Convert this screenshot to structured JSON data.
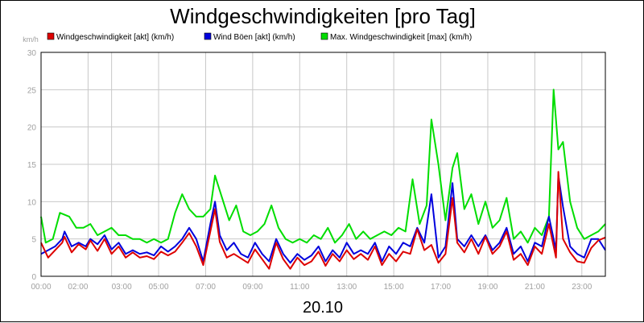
{
  "chart_data": {
    "type": "line",
    "title": "Windgeschwindigkeiten [pro Tag]",
    "date_label": "20.10",
    "ylabel": "km/h",
    "ylim": [
      0,
      30
    ],
    "yticks": [
      "0",
      "5",
      "10",
      "15",
      "20",
      "25",
      "30"
    ],
    "xlim": [
      0,
      24
    ],
    "xtick_hours": [
      0,
      2,
      3,
      5,
      7,
      9,
      11,
      13,
      15,
      17,
      19,
      21,
      23
    ],
    "xtick_labels": [
      "00:00",
      "02:00",
      "03:00",
      "05:00",
      "07:00",
      "09:00",
      "11:00",
      "13:00",
      "15:00",
      "17:00",
      "19:00",
      "21:00",
      "23:00"
    ],
    "grid": true,
    "legend_position": "top",
    "series": [
      {
        "name": "Windgeschwindigkeit [akt] (km/h)",
        "color": "#dd0000",
        "points": [
          [
            0,
            4.5
          ],
          [
            0.3,
            2.5
          ],
          [
            0.6,
            3.5
          ],
          [
            0.9,
            4.5
          ],
          [
            1.0,
            5.3
          ],
          [
            1.3,
            3.2
          ],
          [
            1.6,
            4.3
          ],
          [
            1.9,
            3.6
          ],
          [
            2.1,
            4.8
          ],
          [
            2.4,
            3.4
          ],
          [
            2.7,
            5.0
          ],
          [
            3.0,
            3.0
          ],
          [
            3.3,
            4.0
          ],
          [
            3.6,
            2.5
          ],
          [
            3.9,
            3.2
          ],
          [
            4.2,
            2.5
          ],
          [
            4.5,
            2.7
          ],
          [
            4.8,
            2.3
          ],
          [
            5.1,
            3.3
          ],
          [
            5.4,
            2.8
          ],
          [
            5.7,
            3.3
          ],
          [
            6.0,
            4.5
          ],
          [
            6.3,
            5.8
          ],
          [
            6.6,
            4.0
          ],
          [
            6.9,
            1.5
          ],
          [
            7.2,
            6.0
          ],
          [
            7.4,
            9.0
          ],
          [
            7.6,
            4.6
          ],
          [
            7.9,
            2.5
          ],
          [
            8.2,
            3.0
          ],
          [
            8.5,
            2.4
          ],
          [
            8.8,
            1.8
          ],
          [
            9.1,
            3.6
          ],
          [
            9.4,
            2.3
          ],
          [
            9.7,
            1.0
          ],
          [
            10.0,
            4.5
          ],
          [
            10.3,
            2.3
          ],
          [
            10.6,
            1.0
          ],
          [
            10.9,
            2.5
          ],
          [
            11.2,
            1.5
          ],
          [
            11.5,
            2.0
          ],
          [
            11.8,
            3.3
          ],
          [
            12.1,
            1.4
          ],
          [
            12.4,
            3.0
          ],
          [
            12.7,
            2.0
          ],
          [
            13.0,
            3.5
          ],
          [
            13.3,
            2.3
          ],
          [
            13.6,
            3.0
          ],
          [
            13.9,
            2.2
          ],
          [
            14.2,
            4.0
          ],
          [
            14.5,
            1.5
          ],
          [
            14.8,
            3.0
          ],
          [
            15.1,
            2.0
          ],
          [
            15.4,
            3.3
          ],
          [
            15.7,
            3.0
          ],
          [
            16.0,
            6.3
          ],
          [
            16.3,
            3.5
          ],
          [
            16.6,
            4.2
          ],
          [
            16.9,
            1.8
          ],
          [
            17.2,
            3.0
          ],
          [
            17.5,
            10.5
          ],
          [
            17.7,
            4.5
          ],
          [
            18.0,
            3.2
          ],
          [
            18.3,
            5.0
          ],
          [
            18.6,
            3.0
          ],
          [
            18.9,
            5.3
          ],
          [
            19.2,
            3.0
          ],
          [
            19.5,
            4.0
          ],
          [
            19.8,
            6.0
          ],
          [
            20.1,
            2.2
          ],
          [
            20.4,
            3.0
          ],
          [
            20.7,
            1.5
          ],
          [
            21.0,
            4.0
          ],
          [
            21.3,
            3.0
          ],
          [
            21.6,
            7.0
          ],
          [
            21.9,
            2.5
          ],
          [
            22.0,
            14.0
          ],
          [
            22.2,
            5.0
          ],
          [
            22.5,
            3.2
          ],
          [
            22.8,
            2.0
          ],
          [
            23.1,
            1.8
          ],
          [
            23.4,
            3.8
          ],
          [
            23.7,
            4.8
          ],
          [
            24.0,
            5.2
          ]
        ]
      },
      {
        "name": "Wind Böen [akt] (km/h)",
        "color": "#0000dd",
        "points": [
          [
            0,
            3.0
          ],
          [
            0.3,
            3.5
          ],
          [
            0.6,
            4.0
          ],
          [
            0.9,
            5.0
          ],
          [
            1.0,
            6.0
          ],
          [
            1.3,
            4.0
          ],
          [
            1.6,
            4.5
          ],
          [
            1.9,
            4.0
          ],
          [
            2.1,
            5.0
          ],
          [
            2.4,
            4.3
          ],
          [
            2.7,
            5.5
          ],
          [
            3.0,
            3.6
          ],
          [
            3.3,
            4.5
          ],
          [
            3.6,
            3.0
          ],
          [
            3.9,
            3.5
          ],
          [
            4.2,
            3.0
          ],
          [
            4.5,
            3.2
          ],
          [
            4.8,
            2.8
          ],
          [
            5.1,
            4.0
          ],
          [
            5.4,
            3.3
          ],
          [
            5.7,
            4.0
          ],
          [
            6.0,
            5.0
          ],
          [
            6.3,
            6.5
          ],
          [
            6.6,
            5.0
          ],
          [
            6.9,
            2.0
          ],
          [
            7.2,
            7.0
          ],
          [
            7.4,
            10.0
          ],
          [
            7.6,
            5.5
          ],
          [
            7.9,
            3.5
          ],
          [
            8.2,
            4.5
          ],
          [
            8.5,
            3.0
          ],
          [
            8.8,
            2.5
          ],
          [
            9.1,
            4.5
          ],
          [
            9.4,
            3.0
          ],
          [
            9.7,
            2.0
          ],
          [
            10.0,
            5.0
          ],
          [
            10.3,
            3.0
          ],
          [
            10.6,
            1.8
          ],
          [
            10.9,
            3.0
          ],
          [
            11.2,
            2.2
          ],
          [
            11.5,
            2.8
          ],
          [
            11.8,
            4.0
          ],
          [
            12.1,
            2.0
          ],
          [
            12.4,
            3.5
          ],
          [
            12.7,
            2.5
          ],
          [
            13.0,
            4.5
          ],
          [
            13.3,
            3.0
          ],
          [
            13.6,
            3.5
          ],
          [
            13.9,
            3.0
          ],
          [
            14.2,
            4.5
          ],
          [
            14.5,
            2.0
          ],
          [
            14.8,
            4.0
          ],
          [
            15.1,
            3.0
          ],
          [
            15.4,
            4.5
          ],
          [
            15.7,
            4.0
          ],
          [
            16.0,
            6.5
          ],
          [
            16.3,
            4.5
          ],
          [
            16.6,
            11.0
          ],
          [
            16.9,
            2.5
          ],
          [
            17.2,
            4.0
          ],
          [
            17.5,
            12.5
          ],
          [
            17.7,
            5.0
          ],
          [
            18.0,
            4.0
          ],
          [
            18.3,
            5.5
          ],
          [
            18.6,
            4.0
          ],
          [
            18.9,
            5.5
          ],
          [
            19.2,
            3.5
          ],
          [
            19.5,
            4.5
          ],
          [
            19.8,
            6.5
          ],
          [
            20.1,
            3.0
          ],
          [
            20.4,
            4.0
          ],
          [
            20.7,
            2.0
          ],
          [
            21.0,
            4.5
          ],
          [
            21.3,
            4.0
          ],
          [
            21.6,
            8.0
          ],
          [
            21.9,
            3.5
          ],
          [
            22.0,
            13.5
          ],
          [
            22.2,
            9.3
          ],
          [
            22.5,
            4.0
          ],
          [
            22.8,
            3.0
          ],
          [
            23.1,
            2.5
          ],
          [
            23.4,
            5.0
          ],
          [
            23.7,
            5.0
          ],
          [
            24.0,
            3.5
          ]
        ]
      },
      {
        "name": "Max. Windgeschwindigkeit [max] (km/h)",
        "color": "#00dd00",
        "points": [
          [
            0,
            8.0
          ],
          [
            0.2,
            4.5
          ],
          [
            0.5,
            5.0
          ],
          [
            0.8,
            8.5
          ],
          [
            1.2,
            8.0
          ],
          [
            1.5,
            6.5
          ],
          [
            1.8,
            6.5
          ],
          [
            2.1,
            7.0
          ],
          [
            2.4,
            5.5
          ],
          [
            2.7,
            6.0
          ],
          [
            3.0,
            6.5
          ],
          [
            3.3,
            5.5
          ],
          [
            3.6,
            5.5
          ],
          [
            3.9,
            5.0
          ],
          [
            4.2,
            5.0
          ],
          [
            4.5,
            4.5
          ],
          [
            4.8,
            5.0
          ],
          [
            5.1,
            4.5
          ],
          [
            5.4,
            5.0
          ],
          [
            5.7,
            8.5
          ],
          [
            6.0,
            11.0
          ],
          [
            6.3,
            9.0
          ],
          [
            6.6,
            8.0
          ],
          [
            6.9,
            8.0
          ],
          [
            7.2,
            9.0
          ],
          [
            7.4,
            13.5
          ],
          [
            7.7,
            10.5
          ],
          [
            8.0,
            7.5
          ],
          [
            8.3,
            9.5
          ],
          [
            8.6,
            6.0
          ],
          [
            8.9,
            5.5
          ],
          [
            9.2,
            6.0
          ],
          [
            9.5,
            7.0
          ],
          [
            9.8,
            9.5
          ],
          [
            10.1,
            6.5
          ],
          [
            10.4,
            5.0
          ],
          [
            10.7,
            4.5
          ],
          [
            11.0,
            5.0
          ],
          [
            11.3,
            4.5
          ],
          [
            11.6,
            5.5
          ],
          [
            11.9,
            5.0
          ],
          [
            12.2,
            6.5
          ],
          [
            12.5,
            4.5
          ],
          [
            12.8,
            5.5
          ],
          [
            13.1,
            7.0
          ],
          [
            13.4,
            5.0
          ],
          [
            13.7,
            6.0
          ],
          [
            14.0,
            5.0
          ],
          [
            14.3,
            5.5
          ],
          [
            14.6,
            6.0
          ],
          [
            14.9,
            5.5
          ],
          [
            15.2,
            6.5
          ],
          [
            15.5,
            6.0
          ],
          [
            15.8,
            13.0
          ],
          [
            16.1,
            7.0
          ],
          [
            16.4,
            9.5
          ],
          [
            16.6,
            21.0
          ],
          [
            16.9,
            15.0
          ],
          [
            17.2,
            7.5
          ],
          [
            17.5,
            14.5
          ],
          [
            17.7,
            16.5
          ],
          [
            18.0,
            9.0
          ],
          [
            18.3,
            11.0
          ],
          [
            18.6,
            7.0
          ],
          [
            18.9,
            10.0
          ],
          [
            19.2,
            6.5
          ],
          [
            19.5,
            7.5
          ],
          [
            19.8,
            10.5
          ],
          [
            20.1,
            5.0
          ],
          [
            20.4,
            6.0
          ],
          [
            20.7,
            4.5
          ],
          [
            21.0,
            6.5
          ],
          [
            21.3,
            5.5
          ],
          [
            21.6,
            8.0
          ],
          [
            21.8,
            25.0
          ],
          [
            22.0,
            17.0
          ],
          [
            22.2,
            18.0
          ],
          [
            22.5,
            10.0
          ],
          [
            22.8,
            6.5
          ],
          [
            23.1,
            5.0
          ],
          [
            23.4,
            5.5
          ],
          [
            23.7,
            6.0
          ],
          [
            24.0,
            7.0
          ]
        ]
      }
    ]
  }
}
